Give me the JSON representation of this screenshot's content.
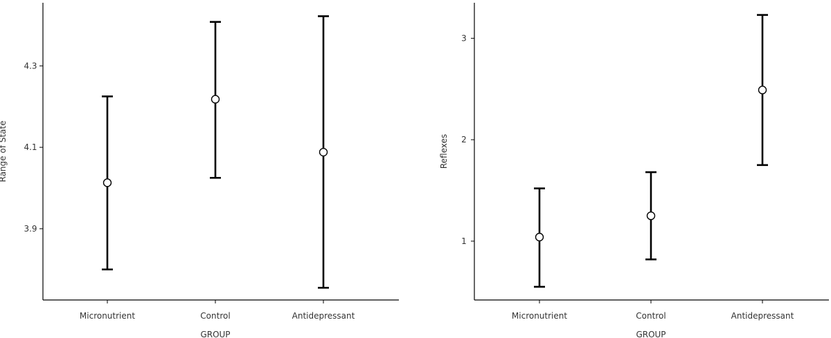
{
  "chart_data": [
    {
      "type": "scatter",
      "subtype": "point-with-error-bars",
      "xlabel": "GROUP",
      "ylabel": "Range of State",
      "categories": [
        "Micronutrient",
        "Control",
        "Antidepressant"
      ],
      "means": [
        4.013,
        4.218,
        4.088
      ],
      "lower": [
        3.8,
        4.025,
        3.755
      ],
      "upper": [
        4.225,
        4.408,
        4.422
      ],
      "yticks": [
        "3.9",
        "4.1",
        "4.3"
      ],
      "ylim": [
        3.725,
        4.455
      ],
      "grid": false
    },
    {
      "type": "scatter",
      "subtype": "point-with-error-bars",
      "xlabel": "GROUP",
      "ylabel": "Reflexes",
      "categories": [
        "Micronutrient",
        "Control",
        "Antidepressant"
      ],
      "means": [
        1.04,
        1.25,
        2.49
      ],
      "lower": [
        0.55,
        0.82,
        1.75
      ],
      "upper": [
        1.52,
        1.68,
        3.23
      ],
      "yticks": [
        "1",
        "2",
        "3"
      ],
      "ylim": [
        0.42,
        3.35
      ],
      "grid": false
    }
  ]
}
